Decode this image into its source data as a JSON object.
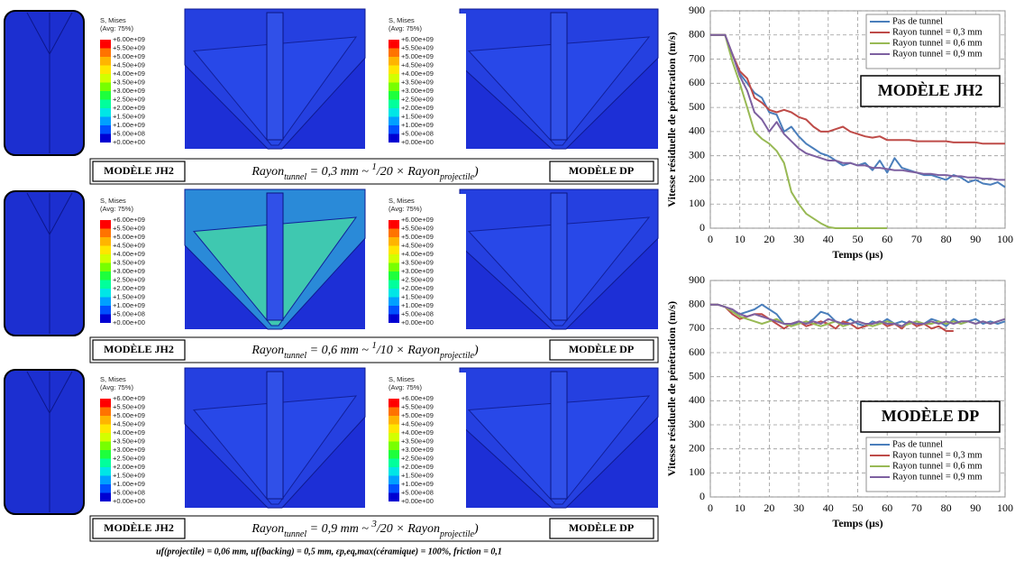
{
  "panels": {
    "legend_title": "S, Mises",
    "legend_avg": "(Avg: 75%)",
    "legend_labels": [
      "+6.00e+09",
      "+5.50e+09",
      "+5.00e+09",
      "+4.50e+09",
      "+4.00e+09",
      "+3.50e+09",
      "+3.00e+09",
      "+2.50e+09",
      "+2.00e+09",
      "+1.50e+09",
      "+1.00e+09",
      "+5.00e+08",
      "+0.00e+00"
    ],
    "rows": [
      {
        "left_label": "MODÈLE JH2",
        "right_label": "MODÈLE DP",
        "formula": [
          "Rayon",
          "tunnel",
          " = 0,3 mm ~ ",
          "1",
          "/20",
          " × Rayon",
          "projectile",
          ")"
        ]
      },
      {
        "left_label": "MODÈLE JH2",
        "right_label": "MODÈLE DP",
        "formula": [
          "Rayon",
          "tunnel",
          " = 0,6 mm ~ ",
          "1",
          "/10",
          " × Rayon",
          "projectile",
          ")"
        ]
      },
      {
        "left_label": "MODÈLE JH2",
        "right_label": "MODÈLE DP",
        "formula": [
          "Rayon",
          "tunnel",
          " = 0,9 mm ~ ",
          "3",
          "/20",
          " × Rayon",
          "projectile",
          ")"
        ]
      }
    ],
    "footnote": "uf(projectile) = 0,06 mm, uf(backing) = 0,5 mm, εp,eq,max(céramique) = 100%, friction = 0,1"
  },
  "chart_data": [
    {
      "type": "line",
      "annotation": "MODÈLE JH2",
      "x_label": "Temps (µs)",
      "y_label": "Vitesse résiduelle de pénétration (m/s)",
      "xlim": [
        0,
        100
      ],
      "xticks": [
        0,
        10,
        20,
        30,
        40,
        50,
        60,
        70,
        80,
        90,
        100
      ],
      "ylim": [
        0,
        900
      ],
      "yticks": [
        0,
        100,
        200,
        300,
        400,
        500,
        600,
        700,
        800,
        900
      ],
      "grid": true,
      "legend": "upper right",
      "x": [
        0,
        2.5,
        5,
        7.5,
        10,
        12.5,
        15,
        17.5,
        20,
        22.5,
        25,
        27.5,
        30,
        32.5,
        35,
        37.5,
        40,
        42.5,
        45,
        47.5,
        50,
        52.5,
        55,
        57.5,
        60,
        62.5,
        65,
        67.5,
        70,
        72.5,
        75,
        77.5,
        80,
        82.5,
        85,
        87.5,
        90,
        92.5,
        95,
        97.5,
        100
      ],
      "series": [
        {
          "name": "Pas de tunnel",
          "color": "#4a7ebb",
          "values": [
            800,
            800,
            800,
            720,
            640,
            600,
            560,
            540,
            480,
            470,
            400,
            420,
            380,
            350,
            330,
            310,
            300,
            280,
            260,
            270,
            260,
            270,
            240,
            280,
            230,
            290,
            250,
            240,
            230,
            220,
            220,
            210,
            200,
            220,
            210,
            190,
            200,
            185,
            180,
            190,
            170
          ]
        },
        {
          "name": "Rayon tunnel = 0,3 mm",
          "color": "#be4b48",
          "values": [
            800,
            800,
            800,
            720,
            650,
            620,
            540,
            520,
            490,
            480,
            490,
            480,
            460,
            450,
            420,
            400,
            400,
            410,
            420,
            400,
            390,
            380,
            375,
            380,
            365,
            365,
            365,
            365,
            360,
            360,
            360,
            360,
            360,
            355,
            355,
            355,
            355,
            350,
            350,
            350,
            350
          ]
        },
        {
          "name": "Rayon tunnel = 0,6 mm",
          "color": "#98b954",
          "values": [
            800,
            800,
            800,
            690,
            600,
            500,
            400,
            370,
            350,
            320,
            270,
            150,
            100,
            60,
            40,
            20,
            5,
            0,
            0,
            0,
            0,
            0,
            0,
            0,
            0,
            null,
            null,
            null,
            null,
            null,
            null,
            null,
            null,
            null,
            null,
            null,
            null,
            null,
            null,
            null,
            null
          ]
        },
        {
          "name": "Rayon tunnel = 0,9 mm",
          "color": "#7d60a0",
          "values": [
            800,
            800,
            800,
            720,
            630,
            570,
            480,
            450,
            400,
            440,
            390,
            360,
            330,
            310,
            300,
            290,
            280,
            280,
            270,
            270,
            260,
            260,
            250,
            250,
            245,
            240,
            240,
            235,
            230,
            225,
            225,
            220,
            220,
            215,
            215,
            210,
            210,
            205,
            205,
            200,
            200
          ]
        }
      ]
    },
    {
      "type": "line",
      "annotation": "MODÈLE DP",
      "x_label": "Temps (µs)",
      "y_label": "Vitesse résiduelle de pénétration (m/s)",
      "xlim": [
        0,
        100
      ],
      "xticks": [
        0,
        10,
        20,
        30,
        40,
        50,
        60,
        70,
        80,
        90,
        100
      ],
      "ylim": [
        0,
        900
      ],
      "yticks": [
        0,
        100,
        200,
        300,
        400,
        500,
        600,
        700,
        800,
        900
      ],
      "grid": true,
      "legend": "lower right",
      "x": [
        0,
        2.5,
        5,
        7.5,
        10,
        12.5,
        15,
        17.5,
        20,
        22.5,
        25,
        27.5,
        30,
        32.5,
        35,
        37.5,
        40,
        42.5,
        45,
        47.5,
        50,
        52.5,
        55,
        57.5,
        60,
        62.5,
        65,
        67.5,
        70,
        72.5,
        75,
        77.5,
        80,
        82.5,
        85,
        87.5,
        90,
        92.5,
        95,
        97.5,
        100
      ],
      "series": [
        {
          "name": "Pas de tunnel",
          "color": "#4a7ebb",
          "values": [
            800,
            800,
            790,
            770,
            760,
            770,
            780,
            800,
            780,
            760,
            720,
            710,
            730,
            720,
            740,
            770,
            760,
            730,
            720,
            740,
            720,
            710,
            730,
            720,
            740,
            720,
            730,
            720,
            730,
            720,
            740,
            730,
            710,
            740,
            720,
            730,
            740,
            720,
            730,
            720,
            730
          ]
        },
        {
          "name": "Rayon tunnel = 0,3 mm",
          "color": "#be4b48",
          "values": [
            800,
            800,
            790,
            760,
            740,
            750,
            760,
            760,
            740,
            720,
            700,
            720,
            730,
            710,
            720,
            730,
            720,
            700,
            730,
            720,
            700,
            710,
            720,
            730,
            710,
            720,
            700,
            730,
            710,
            720,
            700,
            710,
            690,
            690,
            null,
            null,
            null,
            null,
            null,
            null,
            null
          ]
        },
        {
          "name": "Rayon tunnel = 0,6 mm",
          "color": "#98b954",
          "values": [
            800,
            800,
            790,
            770,
            750,
            740,
            730,
            720,
            730,
            740,
            720,
            710,
            720,
            730,
            720,
            710,
            720,
            730,
            710,
            720,
            730,
            720,
            710,
            720,
            730,
            720,
            710,
            720,
            730,
            720,
            720,
            730,
            720,
            730,
            720,
            730,
            720,
            730,
            720,
            730,
            740
          ]
        },
        {
          "name": "Rayon tunnel = 0,9 mm",
          "color": "#7d60a0",
          "values": [
            800,
            800,
            790,
            780,
            760,
            750,
            760,
            750,
            740,
            730,
            720,
            720,
            730,
            720,
            730,
            720,
            740,
            730,
            720,
            720,
            730,
            720,
            720,
            730,
            720,
            720,
            710,
            730,
            720,
            720,
            730,
            720,
            730,
            720,
            730,
            730,
            720,
            730,
            720,
            730,
            740
          ]
        }
      ]
    }
  ]
}
